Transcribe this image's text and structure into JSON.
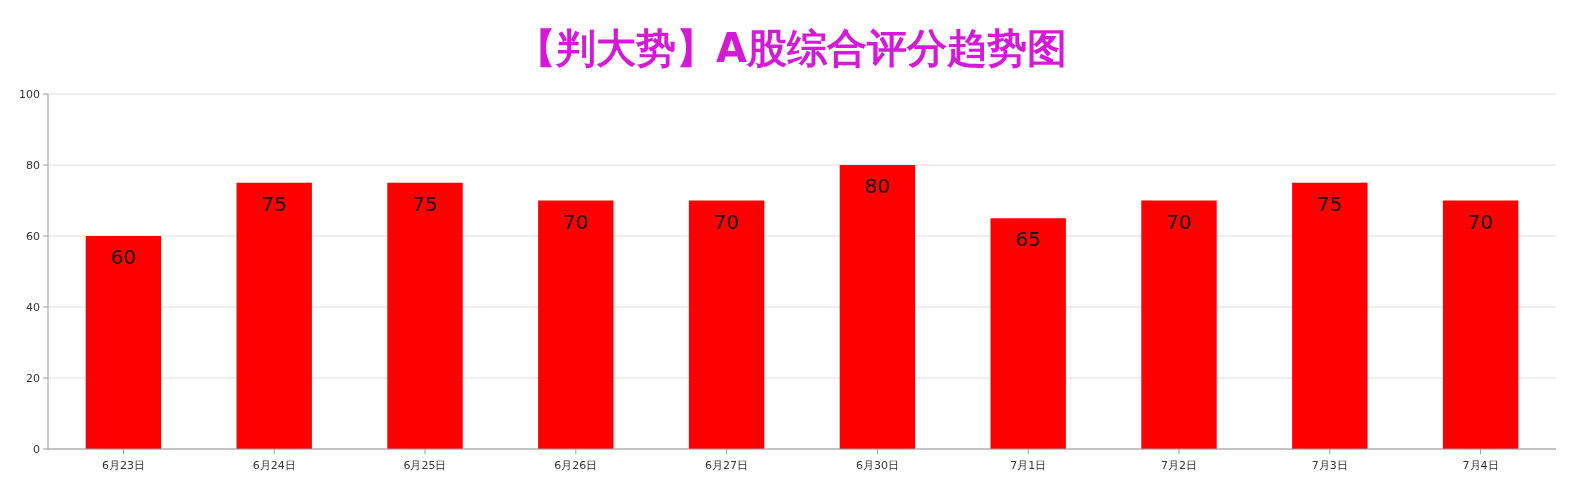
{
  "chart_data": {
    "type": "bar",
    "title": "【判大势】A股综合评分趋势图",
    "categories": [
      "6月23日",
      "6月24日",
      "6月25日",
      "6月26日",
      "6月27日",
      "6月30日",
      "7月1日",
      "7月2日",
      "7月3日",
      "7月4日"
    ],
    "values": [
      60,
      75,
      75,
      70,
      70,
      80,
      65,
      70,
      75,
      70
    ],
    "color": "#ff0000",
    "ylim": [
      0,
      100
    ],
    "yticks": [
      0,
      20,
      40,
      60,
      80,
      100
    ],
    "grid": "y",
    "data_labels": true
  }
}
